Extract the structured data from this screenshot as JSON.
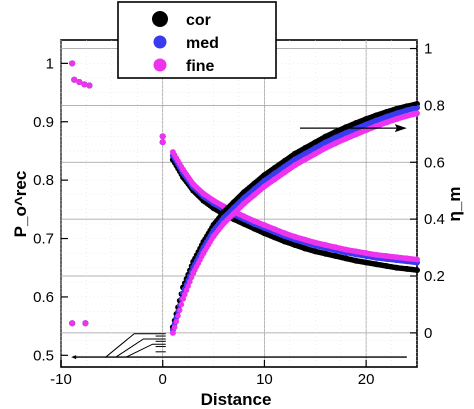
{
  "chart_data": {
    "type": "scatter",
    "xlabel": "Distance",
    "ylabel_left": "P_o^rec",
    "ylabel_right": "η_m",
    "xlim": [
      -10,
      25
    ],
    "ylim_left": [
      0.48,
      1.04
    ],
    "ylim_right": [
      -0.12,
      1.03
    ],
    "x_ticks": [
      -10,
      0,
      10,
      20
    ],
    "y_left_ticks": [
      0.5,
      0.6,
      0.7,
      0.8,
      0.9,
      1.0
    ],
    "y_right_ticks": [
      0,
      0.2,
      0.4,
      0.6,
      0.8,
      1.0
    ],
    "grid": true,
    "legend": {
      "position": "top-center",
      "entries": [
        "cor",
        "med",
        "fine"
      ]
    },
    "colors": {
      "cor": "#000000",
      "med": "#3a3af0",
      "fine": "#ee33ee"
    },
    "annotations": [
      {
        "type": "arrow",
        "points_to": "right-axis",
        "x": [
          13.5,
          24
        ],
        "y": 0.72
      }
    ],
    "series": [
      {
        "name": "cor",
        "axis": "left",
        "points": [
          [
            -8.9,
            0.555
          ],
          [
            -7.6,
            0.555
          ],
          [
            -8.9,
            1.0
          ],
          [
            -8.7,
            0.972
          ],
          [
            -8.2,
            0.968
          ],
          [
            -7.7,
            0.964
          ],
          [
            -7.2,
            0.962
          ],
          [
            0.0,
            0.875
          ],
          [
            0.0,
            0.865
          ],
          [
            1.0,
            0.835
          ],
          [
            2.0,
            0.805
          ],
          [
            3.0,
            0.782
          ],
          [
            4.0,
            0.765
          ],
          [
            5.0,
            0.752
          ],
          [
            6.0,
            0.742
          ],
          [
            7.0,
            0.733
          ],
          [
            8.0,
            0.725
          ],
          [
            9.0,
            0.717
          ],
          [
            10.0,
            0.709
          ],
          [
            11.0,
            0.702
          ],
          [
            12.0,
            0.695
          ],
          [
            13.0,
            0.689
          ],
          [
            14.0,
            0.683
          ],
          [
            15.0,
            0.678
          ],
          [
            16.0,
            0.674
          ],
          [
            17.0,
            0.67
          ],
          [
            18.0,
            0.666
          ],
          [
            19.0,
            0.662
          ],
          [
            20.0,
            0.659
          ],
          [
            21.0,
            0.656
          ],
          [
            22.0,
            0.653
          ],
          [
            23.0,
            0.65
          ],
          [
            24.0,
            0.648
          ],
          [
            25.0,
            0.646
          ]
        ]
      },
      {
        "name": "med",
        "axis": "left",
        "points": [
          [
            -8.9,
            0.555
          ],
          [
            -7.6,
            0.555
          ],
          [
            -8.9,
            1.0
          ],
          [
            -8.7,
            0.972
          ],
          [
            -8.2,
            0.968
          ],
          [
            -7.7,
            0.964
          ],
          [
            -7.2,
            0.962
          ],
          [
            0.0,
            0.875
          ],
          [
            0.0,
            0.865
          ],
          [
            1.0,
            0.842
          ],
          [
            2.0,
            0.812
          ],
          [
            3.0,
            0.788
          ],
          [
            4.0,
            0.772
          ],
          [
            5.0,
            0.76
          ],
          [
            6.0,
            0.75
          ],
          [
            7.0,
            0.741
          ],
          [
            8.0,
            0.733
          ],
          [
            9.0,
            0.725
          ],
          [
            10.0,
            0.718
          ],
          [
            11.0,
            0.711
          ],
          [
            12.0,
            0.704
          ],
          [
            13.0,
            0.698
          ],
          [
            14.0,
            0.693
          ],
          [
            15.0,
            0.688
          ],
          [
            16.0,
            0.684
          ],
          [
            17.0,
            0.68
          ],
          [
            18.0,
            0.676
          ],
          [
            19.0,
            0.673
          ],
          [
            20.0,
            0.67
          ],
          [
            21.0,
            0.667
          ],
          [
            22.0,
            0.665
          ],
          [
            23.0,
            0.663
          ],
          [
            24.0,
            0.661
          ],
          [
            25.0,
            0.659
          ]
        ]
      },
      {
        "name": "fine",
        "axis": "left",
        "points": [
          [
            -8.9,
            0.555
          ],
          [
            -7.6,
            0.555
          ],
          [
            -8.9,
            1.0
          ],
          [
            -8.7,
            0.972
          ],
          [
            -8.2,
            0.968
          ],
          [
            -7.7,
            0.964
          ],
          [
            -7.2,
            0.962
          ],
          [
            0.0,
            0.875
          ],
          [
            0.0,
            0.865
          ],
          [
            1.0,
            0.848
          ],
          [
            2.0,
            0.818
          ],
          [
            3.0,
            0.793
          ],
          [
            4.0,
            0.777
          ],
          [
            5.0,
            0.765
          ],
          [
            6.0,
            0.755
          ],
          [
            7.0,
            0.746
          ],
          [
            8.0,
            0.738
          ],
          [
            9.0,
            0.73
          ],
          [
            10.0,
            0.723
          ],
          [
            11.0,
            0.716
          ],
          [
            12.0,
            0.709
          ],
          [
            13.0,
            0.703
          ],
          [
            14.0,
            0.698
          ],
          [
            15.0,
            0.693
          ],
          [
            16.0,
            0.689
          ],
          [
            17.0,
            0.685
          ],
          [
            18.0,
            0.681
          ],
          [
            19.0,
            0.678
          ],
          [
            20.0,
            0.675
          ],
          [
            21.0,
            0.672
          ],
          [
            22.0,
            0.67
          ],
          [
            23.0,
            0.668
          ],
          [
            24.0,
            0.666
          ],
          [
            25.0,
            0.664
          ]
        ]
      },
      {
        "name": "cor",
        "axis": "right",
        "points": [
          [
            1.0,
            0.02
          ],
          [
            2.0,
            0.16
          ],
          [
            3.0,
            0.25
          ],
          [
            4.0,
            0.32
          ],
          [
            5.0,
            0.38
          ],
          [
            6.0,
            0.425
          ],
          [
            7.0,
            0.46
          ],
          [
            8.0,
            0.495
          ],
          [
            9.0,
            0.525
          ],
          [
            10.0,
            0.555
          ],
          [
            11.0,
            0.58
          ],
          [
            12.0,
            0.605
          ],
          [
            13.0,
            0.63
          ],
          [
            14.0,
            0.65
          ],
          [
            15.0,
            0.67
          ],
          [
            16.0,
            0.69
          ],
          [
            17.0,
            0.707
          ],
          [
            18.0,
            0.723
          ],
          [
            19.0,
            0.738
          ],
          [
            20.0,
            0.752
          ],
          [
            21.0,
            0.765
          ],
          [
            22.0,
            0.777
          ],
          [
            23.0,
            0.788
          ],
          [
            24.0,
            0.797
          ],
          [
            25.0,
            0.805
          ]
        ]
      },
      {
        "name": "med",
        "axis": "right",
        "points": [
          [
            1.0,
            0.01
          ],
          [
            2.0,
            0.14
          ],
          [
            3.0,
            0.23
          ],
          [
            4.0,
            0.3
          ],
          [
            5.0,
            0.36
          ],
          [
            6.0,
            0.405
          ],
          [
            7.0,
            0.44
          ],
          [
            8.0,
            0.475
          ],
          [
            9.0,
            0.505
          ],
          [
            10.0,
            0.535
          ],
          [
            11.0,
            0.56
          ],
          [
            12.0,
            0.585
          ],
          [
            13.0,
            0.61
          ],
          [
            14.0,
            0.63
          ],
          [
            15.0,
            0.65
          ],
          [
            16.0,
            0.67
          ],
          [
            17.0,
            0.687
          ],
          [
            18.0,
            0.703
          ],
          [
            19.0,
            0.718
          ],
          [
            20.0,
            0.733
          ],
          [
            21.0,
            0.747
          ],
          [
            22.0,
            0.76
          ],
          [
            23.0,
            0.772
          ],
          [
            24.0,
            0.783
          ],
          [
            25.0,
            0.792
          ]
        ]
      },
      {
        "name": "fine",
        "axis": "right",
        "points": [
          [
            1.0,
            0.0
          ],
          [
            2.0,
            0.12
          ],
          [
            3.0,
            0.21
          ],
          [
            4.0,
            0.28
          ],
          [
            5.0,
            0.34
          ],
          [
            6.0,
            0.385
          ],
          [
            7.0,
            0.42
          ],
          [
            8.0,
            0.455
          ],
          [
            9.0,
            0.485
          ],
          [
            10.0,
            0.515
          ],
          [
            11.0,
            0.54
          ],
          [
            12.0,
            0.565
          ],
          [
            13.0,
            0.59
          ],
          [
            14.0,
            0.61
          ],
          [
            15.0,
            0.63
          ],
          [
            16.0,
            0.65
          ],
          [
            17.0,
            0.667
          ],
          [
            18.0,
            0.683
          ],
          [
            19.0,
            0.698
          ],
          [
            20.0,
            0.713
          ],
          [
            21.0,
            0.727
          ],
          [
            22.0,
            0.74
          ],
          [
            23.0,
            0.752
          ],
          [
            24.0,
            0.763
          ],
          [
            25.0,
            0.772
          ]
        ]
      }
    ]
  }
}
